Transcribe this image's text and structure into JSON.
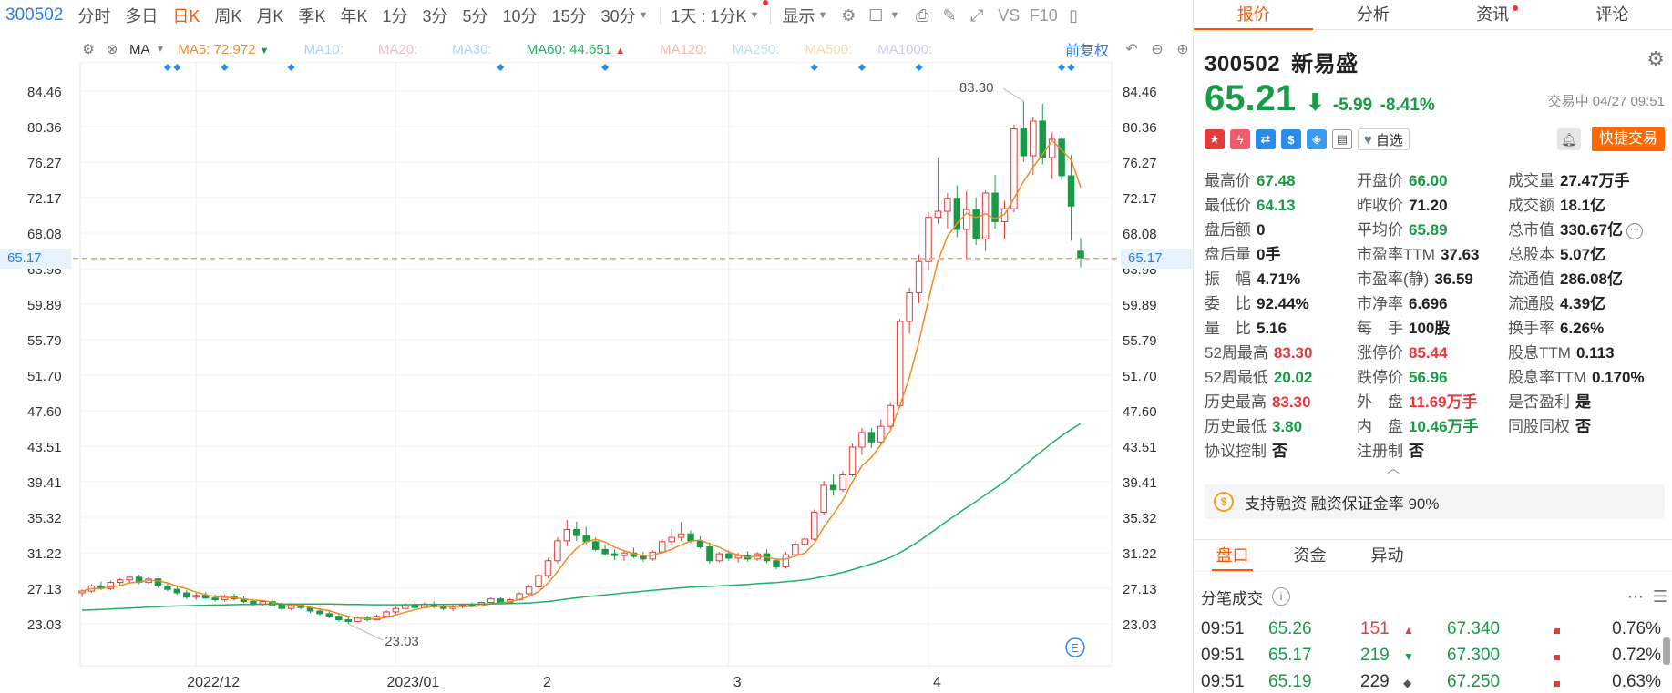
{
  "toolbar": {
    "code": "300502",
    "periods": [
      "分时",
      "多日",
      "日K",
      "周K",
      "月K",
      "季K",
      "年K",
      "1分",
      "3分",
      "5分",
      "10分",
      "15分"
    ],
    "active_period": "日K",
    "dropdown_30": "30分",
    "dropdown_1day": "1天 : 1分K",
    "display": "显示",
    "vs": "VS",
    "f10": "F10"
  },
  "ma_bar": {
    "label": "MA",
    "ma5_label": "MA5:",
    "ma5_value": "72.972",
    "ma5_color": "#f08a24",
    "ma10_label": "MA10:",
    "ma10_color": "#a8d4f5",
    "ma20_label": "MA20:",
    "ma20_color": "#f3b8d0",
    "ma30_label": "MA30:",
    "ma30_color": "#a8d4f5",
    "ma60_label": "MA60:",
    "ma60_value": "44.651",
    "ma60_color": "#1eb25f",
    "ma120_label": "MA120:",
    "ma120_color": "#f5b7b0",
    "ma250_label": "MA250:",
    "ma250_color": "#b8e0f5",
    "ma500_label": "MA500:",
    "ma500_color": "#f7d9a8",
    "ma1000_label": "MA1000:",
    "ma1000_color": "#d4c4f0",
    "adjust": "前复权"
  },
  "chart_data": {
    "type": "candlestick",
    "title": "",
    "y_ticks": [
      84.46,
      80.36,
      76.27,
      72.17,
      68.08,
      63.98,
      59.89,
      55.79,
      51.7,
      47.6,
      43.51,
      39.41,
      35.32,
      31.22,
      27.13,
      23.03
    ],
    "ylim": [
      23.03,
      84.46
    ],
    "x_labels": [
      "2022/12",
      "2023/01",
      "2",
      "3",
      "4"
    ],
    "current_price_line": 65.17,
    "annotations": {
      "high": "83.30",
      "low": "23.03"
    },
    "candles_ohlc": [
      [
        26.6,
        27.0,
        26.1,
        26.8
      ],
      [
        26.8,
        27.6,
        26.6,
        27.4
      ],
      [
        27.4,
        27.9,
        26.9,
        27.1
      ],
      [
        27.1,
        28.0,
        26.9,
        27.8
      ],
      [
        27.8,
        28.3,
        27.5,
        28.1
      ],
      [
        28.1,
        28.6,
        27.7,
        28.4
      ],
      [
        28.4,
        28.7,
        27.6,
        27.8
      ],
      [
        27.8,
        28.4,
        27.6,
        28.2
      ],
      [
        28.2,
        28.3,
        27.2,
        27.4
      ],
      [
        27.4,
        27.8,
        26.8,
        27.0
      ],
      [
        27.0,
        27.4,
        26.4,
        26.6
      ],
      [
        26.6,
        26.9,
        25.9,
        26.1
      ],
      [
        26.1,
        26.6,
        25.8,
        26.3
      ],
      [
        26.3,
        26.7,
        25.9,
        26.0
      ],
      [
        26.0,
        26.4,
        25.6,
        25.8
      ],
      [
        25.8,
        26.4,
        25.6,
        26.2
      ],
      [
        26.2,
        26.5,
        25.7,
        25.9
      ],
      [
        25.9,
        26.2,
        25.4,
        25.6
      ],
      [
        25.6,
        25.9,
        25.1,
        25.3
      ],
      [
        25.3,
        25.8,
        25.1,
        25.6
      ],
      [
        25.6,
        25.9,
        25.0,
        25.2
      ],
      [
        25.2,
        25.5,
        24.6,
        24.8
      ],
      [
        24.8,
        25.4,
        24.6,
        25.2
      ],
      [
        25.2,
        25.4,
        24.7,
        24.9
      ],
      [
        24.9,
        25.1,
        24.3,
        24.5
      ],
      [
        24.5,
        24.8,
        24.0,
        24.2
      ],
      [
        24.2,
        24.5,
        23.7,
        23.9
      ],
      [
        23.9,
        24.1,
        23.3,
        23.5
      ],
      [
        23.5,
        23.8,
        23.03,
        23.3
      ],
      [
        23.3,
        23.9,
        23.2,
        23.7
      ],
      [
        23.7,
        24.0,
        23.3,
        23.5
      ],
      [
        23.5,
        24.1,
        23.4,
        23.9
      ],
      [
        23.9,
        24.6,
        23.8,
        24.4
      ],
      [
        24.4,
        25.0,
        24.2,
        24.8
      ],
      [
        24.8,
        25.4,
        24.6,
        25.2
      ],
      [
        25.2,
        25.6,
        24.7,
        24.9
      ],
      [
        24.9,
        25.5,
        24.8,
        25.3
      ],
      [
        25.3,
        25.6,
        24.8,
        25.0
      ],
      [
        25.0,
        25.3,
        24.6,
        24.8
      ],
      [
        24.8,
        25.2,
        24.5,
        25.0
      ],
      [
        25.0,
        25.4,
        24.8,
        25.2
      ],
      [
        25.2,
        25.5,
        24.9,
        25.1
      ],
      [
        25.1,
        25.6,
        25.0,
        25.5
      ],
      [
        25.5,
        26.1,
        25.3,
        25.9
      ],
      [
        25.9,
        26.1,
        25.3,
        25.5
      ],
      [
        25.5,
        26.0,
        25.3,
        25.8
      ],
      [
        25.8,
        26.7,
        25.7,
        26.5
      ],
      [
        26.5,
        27.5,
        26.3,
        27.3
      ],
      [
        27.3,
        28.8,
        27.1,
        28.6
      ],
      [
        28.6,
        30.6,
        28.3,
        30.3
      ],
      [
        30.3,
        33.0,
        30.0,
        32.6
      ],
      [
        32.6,
        35.0,
        32.0,
        33.9
      ],
      [
        33.9,
        34.8,
        32.6,
        33.2
      ],
      [
        33.2,
        34.2,
        32.2,
        32.5
      ],
      [
        32.5,
        33.0,
        31.4,
        31.6
      ],
      [
        31.6,
        32.2,
        30.9,
        31.1
      ],
      [
        31.1,
        31.6,
        30.4,
        30.9
      ],
      [
        30.9,
        31.5,
        30.3,
        31.2
      ],
      [
        31.2,
        31.8,
        30.6,
        30.8
      ],
      [
        30.8,
        31.3,
        30.2,
        30.5
      ],
      [
        30.5,
        31.5,
        30.3,
        31.3
      ],
      [
        31.3,
        32.8,
        31.1,
        32.5
      ],
      [
        32.5,
        34.0,
        32.2,
        33.0
      ],
      [
        33.0,
        34.8,
        32.6,
        33.4
      ],
      [
        33.4,
        33.8,
        32.3,
        32.6
      ],
      [
        32.6,
        33.1,
        31.7,
        31.9
      ],
      [
        31.9,
        32.4,
        30.0,
        30.3
      ],
      [
        30.3,
        31.3,
        30.1,
        31.1
      ],
      [
        31.1,
        31.5,
        30.3,
        30.6
      ],
      [
        30.6,
        31.2,
        30.1,
        30.9
      ],
      [
        30.9,
        31.4,
        30.2,
        30.5
      ],
      [
        30.5,
        31.3,
        30.3,
        31.1
      ],
      [
        31.1,
        31.6,
        30.0,
        30.3
      ],
      [
        30.3,
        30.6,
        29.3,
        29.6
      ],
      [
        29.6,
        31.3,
        29.4,
        31.0
      ],
      [
        31.0,
        32.6,
        30.8,
        32.2
      ],
      [
        32.2,
        33.2,
        31.8,
        32.8
      ],
      [
        32.8,
        36.2,
        32.6,
        35.9
      ],
      [
        35.9,
        39.5,
        35.6,
        39.0
      ],
      [
        39.0,
        40.3,
        37.8,
        38.5
      ],
      [
        38.5,
        40.6,
        38.2,
        40.2
      ],
      [
        40.2,
        43.8,
        40.0,
        43.4
      ],
      [
        43.4,
        45.6,
        42.5,
        45.1
      ],
      [
        45.1,
        45.6,
        43.3,
        44.0
      ],
      [
        44.0,
        46.6,
        43.7,
        45.8
      ],
      [
        45.8,
        48.6,
        45.5,
        48.2
      ],
      [
        48.2,
        58.2,
        48.0,
        57.9
      ],
      [
        57.9,
        61.8,
        56.5,
        61.2
      ],
      [
        61.2,
        65.6,
        60.0,
        64.8
      ],
      [
        64.8,
        70.5,
        63.8,
        69.9
      ],
      [
        69.9,
        76.8,
        69.2,
        70.6
      ],
      [
        70.6,
        72.7,
        68.6,
        72.1
      ],
      [
        72.1,
        73.6,
        67.6,
        68.5
      ],
      [
        68.5,
        72.9,
        65.0,
        70.8
      ],
      [
        70.8,
        72.2,
        66.7,
        67.4
      ],
      [
        67.4,
        73.0,
        66.0,
        72.7
      ],
      [
        72.7,
        74.8,
        68.6,
        69.4
      ],
      [
        69.4,
        71.8,
        67.4,
        70.9
      ],
      [
        70.9,
        80.6,
        70.5,
        80.1
      ],
      [
        80.1,
        83.3,
        76.3,
        77.0
      ],
      [
        77.0,
        81.5,
        74.8,
        81.0
      ],
      [
        81.0,
        83.0,
        76.0,
        76.8
      ],
      [
        76.8,
        79.7,
        74.3,
        78.9
      ],
      [
        78.9,
        79.2,
        74.2,
        74.7
      ],
      [
        74.7,
        77.1,
        67.2,
        71.2
      ],
      [
        66.0,
        67.48,
        64.13,
        65.21
      ]
    ]
  },
  "quote": {
    "tabs": [
      "报价",
      "分析",
      "资讯",
      "评论"
    ],
    "code": "300502",
    "name": "新易盛",
    "price": "65.21",
    "change": "-5.99",
    "change_pct": "-8.41%",
    "status_time": "交易中 04/27 09:51",
    "watch_label": "自选",
    "quick_trade": "快捷交易",
    "stats": [
      [
        {
          "l": "最高价",
          "v": "67.48",
          "c": "green"
        },
        {
          "l": "开盘价",
          "v": "66.00",
          "c": "green"
        },
        {
          "l": "成交量",
          "v": "27.47万手",
          "c": "dark"
        }
      ],
      [
        {
          "l": "最低价",
          "v": "64.13",
          "c": "green"
        },
        {
          "l": "昨收价",
          "v": "71.20",
          "c": "dark"
        },
        {
          "l": "成交额",
          "v": "18.1亿",
          "c": "dark"
        }
      ],
      [
        {
          "l": "盘后额",
          "v": "0",
          "c": "dark"
        },
        {
          "l": "平均价",
          "v": "65.89",
          "c": "green"
        },
        {
          "l": "总市值",
          "v": "330.67亿",
          "c": "dark"
        }
      ],
      [
        {
          "l": "盘后量",
          "v": "0手",
          "c": "dark"
        },
        {
          "l": "市盈率TTM",
          "v": "37.63",
          "c": "dark"
        },
        {
          "l": "总股本",
          "v": "5.07亿",
          "c": "dark"
        }
      ],
      [
        {
          "l": "振　幅",
          "v": "4.71%",
          "c": "dark"
        },
        {
          "l": "市盈率(静)",
          "v": "36.59",
          "c": "dark"
        },
        {
          "l": "流通值",
          "v": "286.08亿",
          "c": "dark"
        }
      ],
      [
        {
          "l": "委　比",
          "v": "92.44%",
          "c": "dark"
        },
        {
          "l": "市净率",
          "v": "6.696",
          "c": "dark"
        },
        {
          "l": "流通股",
          "v": "4.39亿",
          "c": "dark"
        }
      ],
      [
        {
          "l": "量　比",
          "v": "5.16",
          "c": "dark"
        },
        {
          "l": "每　手",
          "v": "100股",
          "c": "dark"
        },
        {
          "l": "换手率",
          "v": "6.26%",
          "c": "dark"
        }
      ],
      [
        {
          "l": "52周最高",
          "v": "83.30",
          "c": "red"
        },
        {
          "l": "涨停价",
          "v": "85.44",
          "c": "red"
        },
        {
          "l": "股息TTM",
          "v": "0.113",
          "c": "dark"
        }
      ],
      [
        {
          "l": "52周最低",
          "v": "20.02",
          "c": "green"
        },
        {
          "l": "跌停价",
          "v": "56.96",
          "c": "green"
        },
        {
          "l": "股息率TTM",
          "v": "0.170%",
          "c": "dark"
        }
      ],
      [
        {
          "l": "历史最高",
          "v": "83.30",
          "c": "red"
        },
        {
          "l": "外　盘",
          "v": "11.69万手",
          "c": "red"
        },
        {
          "l": "是否盈利",
          "v": "是",
          "c": "dark"
        }
      ],
      [
        {
          "l": "历史最低",
          "v": "3.80",
          "c": "green"
        },
        {
          "l": "内　盘",
          "v": "10.46万手",
          "c": "green"
        },
        {
          "l": "同股同权",
          "v": "否",
          "c": "dark"
        }
      ],
      [
        {
          "l": "协议控制",
          "v": "否",
          "c": "dark"
        },
        {
          "l": "注册制",
          "v": "否",
          "c": "dark"
        },
        {
          "l": "",
          "v": "",
          "c": "dark"
        }
      ]
    ],
    "margin_text": "支持融资 融资保证金率 90%",
    "bottom_tabs": [
      "盘口",
      "资金",
      "异动"
    ],
    "ticks_title": "分笔成交",
    "ticks": [
      {
        "time": "09:51",
        "price": "65.26",
        "vol": "151",
        "dir": "up",
        "ref": "67.340",
        "pct": "0.76%"
      },
      {
        "time": "09:51",
        "price": "65.17",
        "vol": "219",
        "dir": "down",
        "ref": "67.300",
        "pct": "0.72%"
      },
      {
        "time": "09:51",
        "price": "65.19",
        "vol": "229",
        "dir": "flat",
        "ref": "67.250",
        "pct": "0.63%"
      }
    ]
  }
}
